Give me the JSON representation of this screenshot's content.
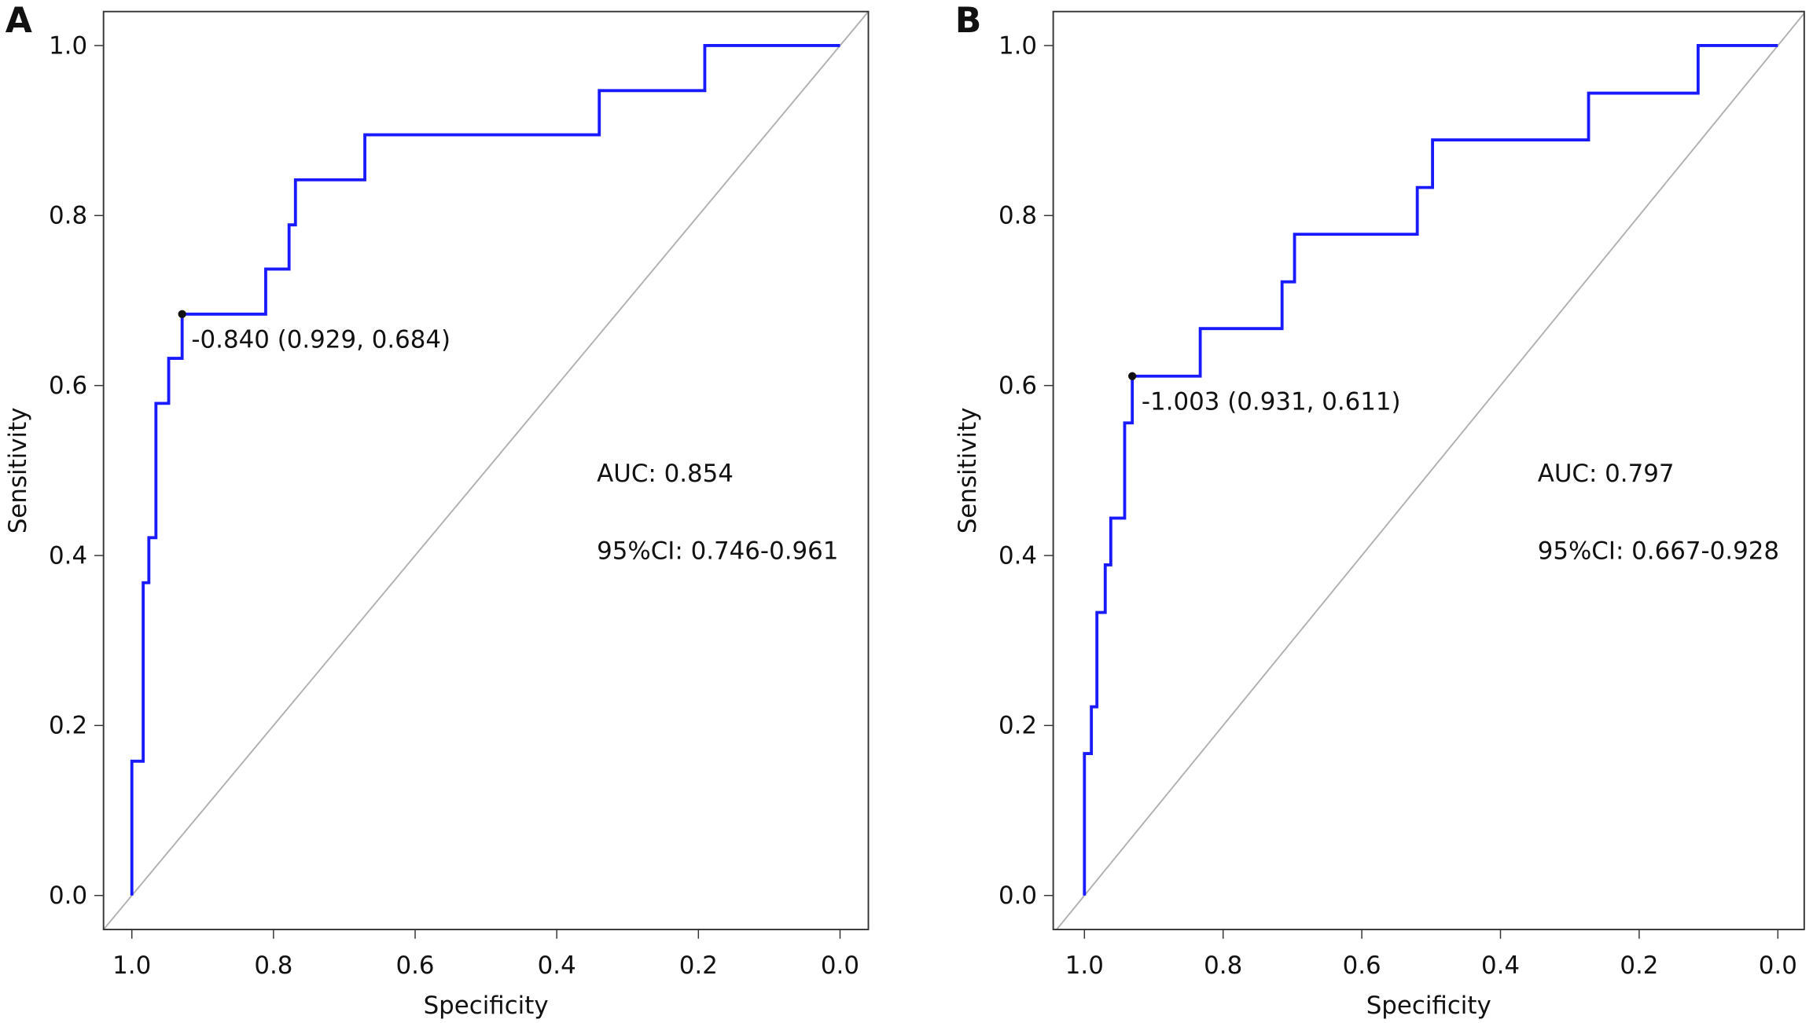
{
  "chart_data": [
    {
      "type": "line",
      "panel_label": "A",
      "xlabel": "Specificity",
      "ylabel": "Sensitivity",
      "color": "#1a1aff",
      "x": [
        1.0,
        1.0,
        0.984,
        0.984,
        0.976,
        0.976,
        0.966,
        0.966,
        0.948,
        0.948,
        0.929,
        0.929,
        0.811,
        0.811,
        0.778,
        0.778,
        0.769,
        0.769,
        0.671,
        0.671,
        0.34,
        0.34,
        0.191,
        0.191,
        0.0
      ],
      "values": [
        0,
        0.158,
        0.158,
        0.368,
        0.368,
        0.421,
        0.421,
        0.579,
        0.579,
        0.632,
        0.632,
        0.684,
        0.684,
        0.737,
        0.737,
        0.789,
        0.789,
        0.842,
        0.842,
        0.895,
        0.895,
        0.947,
        0.947,
        1.0,
        1.0
      ],
      "cutoff": {
        "x": 0.929,
        "y": 0.684,
        "label": "-0.840 (0.929, 0.684)"
      },
      "annotations": [
        "AUC: 0.854",
        "95%CI: 0.746-0.961"
      ],
      "xlim": [
        1.04,
        -0.04
      ],
      "ylim": [
        -0.04,
        1.04
      ],
      "xticks": [
        {
          "value": 1,
          "label": "1.0"
        },
        0.8,
        0.6,
        0.4,
        0.2,
        {
          "value": 0,
          "label": "0.0"
        }
      ],
      "yticks": [
        {
          "value": 0,
          "label": "0.0"
        },
        0.2,
        0.4,
        0.6,
        0.8,
        {
          "value": 1,
          "label": "1.0"
        }
      ]
    },
    {
      "type": "line",
      "panel_label": "B",
      "xlabel": "Specificity",
      "ylabel": "Sensitivity",
      "color": "#1a1aff",
      "x": [
        1.0,
        1.0,
        0.99,
        0.99,
        0.982,
        0.982,
        0.97,
        0.97,
        0.962,
        0.962,
        0.942,
        0.942,
        0.931,
        0.931,
        0.833,
        0.833,
        0.715,
        0.715,
        0.697,
        0.697,
        0.52,
        0.52,
        0.498,
        0.498,
        0.273,
        0.273,
        0.115,
        0.115,
        0.0
      ],
      "values": [
        0,
        0.167,
        0.167,
        0.222,
        0.222,
        0.333,
        0.333,
        0.389,
        0.389,
        0.444,
        0.444,
        0.556,
        0.556,
        0.611,
        0.611,
        0.667,
        0.667,
        0.722,
        0.722,
        0.778,
        0.778,
        0.833,
        0.833,
        0.889,
        0.889,
        0.944,
        0.944,
        1.0,
        1.0
      ],
      "cutoff": {
        "x": 0.931,
        "y": 0.611,
        "label": "-1.003 (0.931, 0.611)"
      },
      "annotations": [
        "AUC: 0.797",
        "95%CI: 0.667-0.928"
      ],
      "xlim": [
        1.045,
        -0.038
      ],
      "ylim": [
        -0.04,
        1.04
      ],
      "xticks": [
        {
          "value": 1,
          "label": "1.0"
        },
        0.8,
        0.6,
        0.4,
        0.2,
        {
          "value": 0,
          "label": "0.0"
        }
      ],
      "yticks": [
        {
          "value": 0,
          "label": "0.0"
        },
        0.2,
        0.4,
        0.6,
        0.8,
        {
          "value": 1,
          "label": "1.0"
        }
      ]
    }
  ]
}
